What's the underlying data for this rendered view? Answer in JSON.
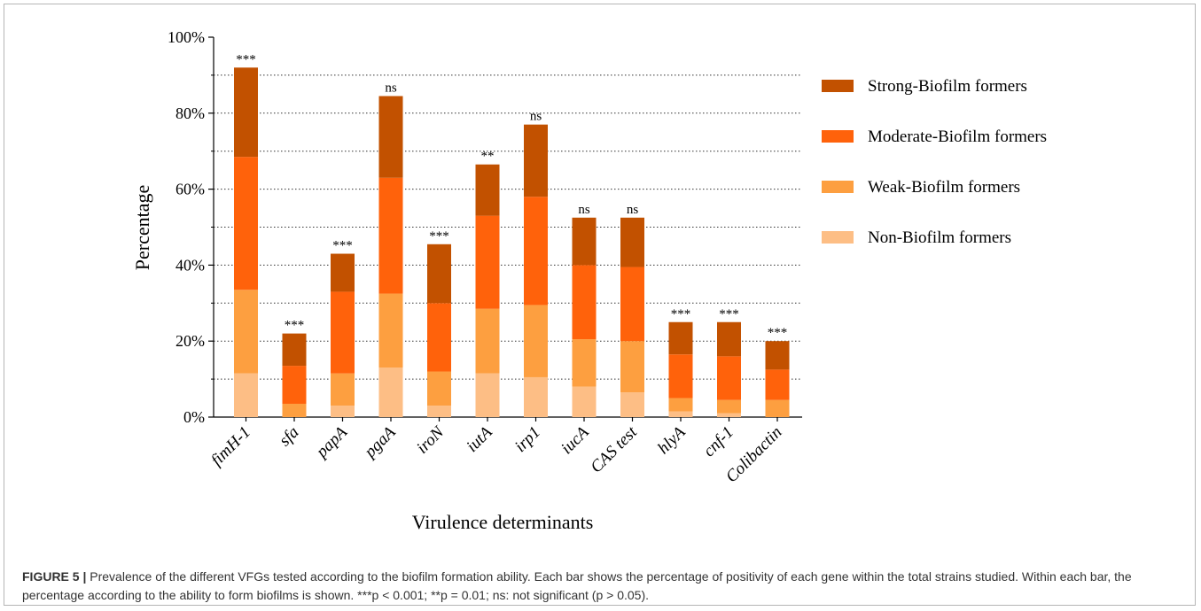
{
  "chart_data": {
    "type": "bar",
    "stacked": true,
    "ylabel": "Percentage",
    "xlabel": "Virulence determinants",
    "ylim": [
      0,
      100
    ],
    "yticks": [
      "0%",
      "20%",
      "40%",
      "60%",
      "80%",
      "100%"
    ],
    "grid": "dotted horizontal every 10%",
    "legend_position": "right",
    "categories": [
      "fimH-1",
      "sfa",
      "papA",
      "pgaA",
      "iroN",
      "iutA",
      "irp1",
      "iucA",
      "CAS test",
      "hlyA",
      "cnf-1",
      "Colibactin"
    ],
    "series": [
      {
        "name": "Non-Biofilm formers",
        "color": "#FDBE85",
        "values": [
          11.5,
          0,
          3,
          13,
          3,
          11.5,
          10.5,
          8,
          6.5,
          1.5,
          1,
          0
        ]
      },
      {
        "name": "Weak-Biofilm formers",
        "color": "#FD9F40",
        "values": [
          22,
          3.5,
          8.5,
          19.5,
          9,
          17,
          19,
          12.5,
          13.5,
          3.5,
          3.5,
          4.5
        ]
      },
      {
        "name": "Moderate-Biofilm formers",
        "color": "#FF620B",
        "values": [
          35,
          10,
          21.5,
          30.5,
          18,
          24.5,
          28.5,
          19.5,
          19.5,
          11.5,
          11.5,
          8
        ]
      },
      {
        "name": "Strong-Biofilm formers",
        "color": "#C25100",
        "values": [
          23.5,
          8.5,
          10,
          21.5,
          15.5,
          13.5,
          19,
          12.5,
          13,
          8.5,
          9,
          7.5
        ]
      }
    ],
    "significance": [
      "***",
      "***",
      "***",
      "ns",
      "***",
      "**",
      "ns",
      "ns",
      "ns",
      "***",
      "***",
      "***"
    ]
  },
  "caption": {
    "label": "FIGURE 5 |",
    "text": " Prevalence of the different VFGs tested according to the biofilm formation ability. Each bar shows the percentage of positivity of each gene within the total strains studied. Within each bar, the percentage according to the ability to form biofilms is shown. ***p < 0.001; **p = 0.01; ns: not significant (p > 0.05)."
  }
}
